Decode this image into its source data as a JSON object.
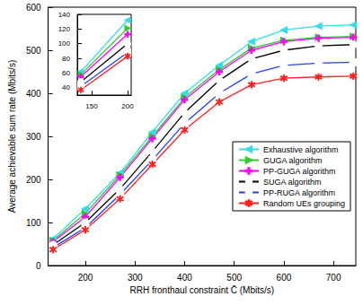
{
  "chart_data": [
    {
      "type": "line",
      "x_label": "RRH fronthaul constraint C̄ (Mbits/s)",
      "y_label": "Average achievable sum rate (Mbits/s)",
      "x": [
        135,
        200,
        270,
        335,
        400,
        470,
        535,
        600,
        670,
        740
      ],
      "xlim": [
        125,
        745
      ],
      "xticks": [
        200,
        300,
        400,
        500,
        600,
        700
      ],
      "ylim": [
        0,
        600
      ],
      "yticks": [
        0,
        100,
        200,
        300,
        400,
        500,
        600
      ],
      "grid": false,
      "legend": "right",
      "series": [
        {
          "name": "Exhaustive algorithm",
          "color": "#33dde8",
          "marker": "triangle-left",
          "values": [
            62,
            132,
            215,
            310,
            400,
            465,
            520,
            547,
            556,
            559
          ]
        },
        {
          "name": "GUGA algorithm",
          "color": "#2ecc2e",
          "marker": "triangle-right",
          "values": [
            58,
            121,
            210,
            300,
            390,
            455,
            505,
            523,
            530,
            532
          ]
        },
        {
          "name": "PP-GUGA algorithm",
          "color": "#ff00ff",
          "marker": "plus",
          "values": [
            55,
            113,
            205,
            295,
            385,
            450,
            500,
            520,
            528,
            530
          ]
        },
        {
          "name": "SUGA algorithm",
          "color": "#000000",
          "marker": "circle",
          "values": [
            48,
            100,
            178,
            265,
            355,
            430,
            480,
            500,
            510,
            513
          ]
        },
        {
          "name": "PP-RUGA algorithm",
          "color": "#1f3fff",
          "marker": "square",
          "values": [
            42,
            88,
            165,
            245,
            330,
            400,
            445,
            465,
            470,
            472
          ]
        },
        {
          "name": "Random UEs grouping",
          "color": "#ff2020",
          "marker": "asterisk",
          "values": [
            37,
            83,
            155,
            235,
            315,
            380,
            420,
            435,
            438,
            440
          ]
        }
      ]
    },
    {
      "type": "line",
      "x": [
        135,
        200
      ],
      "xlim": [
        130,
        205
      ],
      "xticks": [
        150,
        200
      ],
      "ylim": [
        30,
        140
      ],
      "yticks": [
        40,
        60,
        80,
        100,
        120,
        140
      ],
      "grid": false,
      "series": [
        {
          "color": "#33dde8",
          "marker": "triangle-left",
          "values": [
            62,
            132
          ]
        },
        {
          "color": "#2ecc2e",
          "marker": "triangle-right",
          "values": [
            58,
            121
          ]
        },
        {
          "color": "#ff00ff",
          "marker": "plus",
          "values": [
            55,
            113
          ]
        },
        {
          "color": "#000000",
          "marker": "circle",
          "values": [
            48,
            100
          ]
        },
        {
          "color": "#1f3fff",
          "marker": "square",
          "values": [
            42,
            88
          ]
        },
        {
          "color": "#ff2020",
          "marker": "asterisk",
          "values": [
            37,
            83
          ]
        }
      ]
    }
  ]
}
